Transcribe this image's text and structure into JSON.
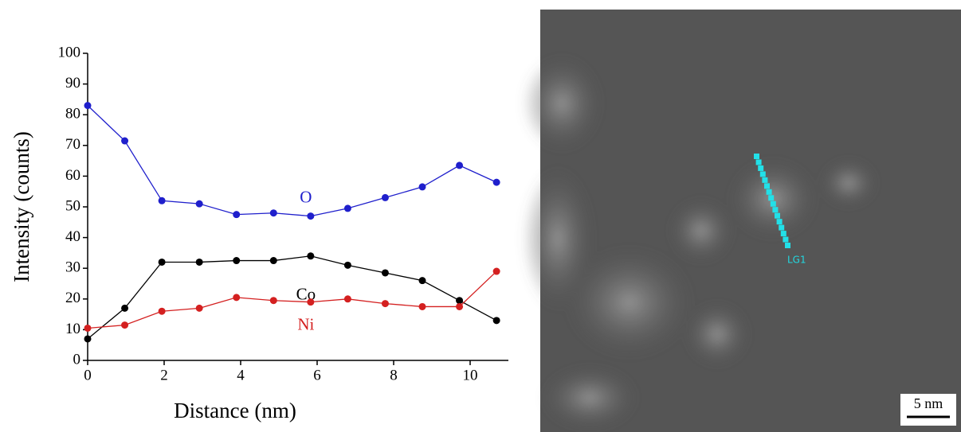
{
  "chart_data": {
    "type": "line",
    "xlabel": "Distance (nm)",
    "ylabel": "Intensity (counts)",
    "x": [
      0,
      0.97,
      1.94,
      2.92,
      3.89,
      4.86,
      5.83,
      6.8,
      7.78,
      8.75,
      9.72,
      10.69
    ],
    "series": [
      {
        "name": "O",
        "color": "#1f1fcc",
        "values": [
          83,
          71.5,
          52,
          51,
          47.5,
          48,
          47,
          49.5,
          53,
          56.5,
          63.5,
          58
        ]
      },
      {
        "name": "Co",
        "color": "#000000",
        "values": [
          7,
          17,
          32,
          32,
          32.5,
          32.5,
          34,
          31,
          28.5,
          26,
          19.5,
          13
        ]
      },
      {
        "name": "Ni",
        "color": "#d42020",
        "values": [
          10.5,
          11.5,
          16,
          17,
          20.5,
          19.5,
          19,
          20,
          18.5,
          17.5,
          17.5,
          29
        ]
      }
    ],
    "xlim": [
      0,
      11
    ],
    "xticks": [
      0,
      2,
      4,
      6,
      8,
      10
    ],
    "ylim": [
      0,
      100
    ],
    "yticks": [
      0,
      10,
      20,
      30,
      40,
      50,
      60,
      70,
      80,
      90,
      100
    ],
    "grid": false
  },
  "image": {
    "line_label": "LG1",
    "scale_bar": "5 nm"
  }
}
